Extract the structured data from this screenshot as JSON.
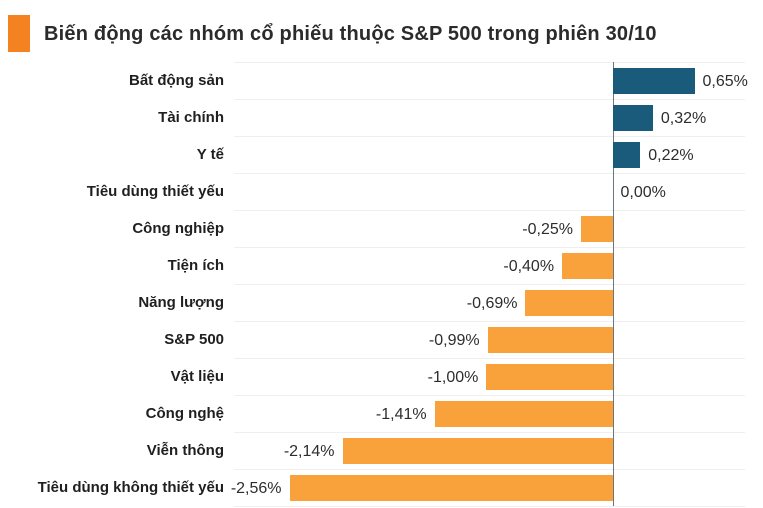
{
  "header": {
    "marker_color": "#f58220",
    "title": "Biến động các nhóm cổ phiếu thuộc S&P 500 trong phiên 30/10"
  },
  "chart_data": {
    "type": "bar",
    "orientation": "horizontal",
    "title": "Biến động các nhóm cổ phiếu thuộc S&P 500 trong phiên 30/10",
    "categories": [
      "Bất động sản",
      "Tài chính",
      "Y tế",
      "Tiêu dùng thiết yếu",
      "Công nghiệp",
      "Tiện ích",
      "Năng lượng",
      "S&P 500",
      "Vật liệu",
      "Công nghệ",
      "Viễn thông",
      "Tiêu dùng không thiết yếu"
    ],
    "values": [
      0.65,
      0.32,
      0.22,
      0.0,
      -0.25,
      -0.4,
      -0.69,
      -0.99,
      -1.0,
      -1.41,
      -2.14,
      -2.56
    ],
    "value_labels": [
      "0,65%",
      "0,32%",
      "0,22%",
      "0,00%",
      "-0,25%",
      "-0,40%",
      "-0,69%",
      "-0,99%",
      "-1,00%",
      "-1,41%",
      "-2,14%",
      "-2,56%"
    ],
    "unit": "%",
    "decimal_separator": ",",
    "xlim": [
      -3.0,
      1.05
    ],
    "grid": "light horizontal row separators, vertical zero axis line",
    "legend": "none",
    "colors": {
      "positive": "#1a5a7a",
      "negative": "#f9a23b",
      "zero_axis": "#6b7680",
      "gridline": "#efefef"
    }
  }
}
